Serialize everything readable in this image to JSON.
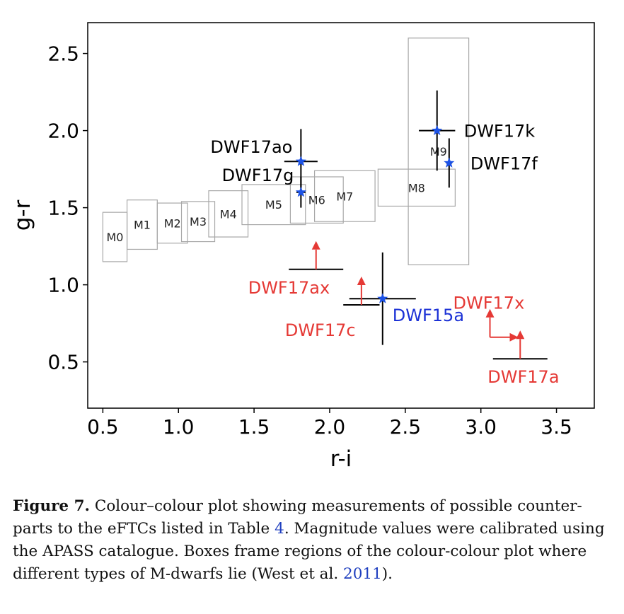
{
  "chart_data": {
    "type": "scatter",
    "xlabel": "r-i",
    "ylabel": "g-r",
    "xlim": [
      0.4,
      3.75
    ],
    "ylim": [
      0.2,
      2.7
    ],
    "xticks": [
      0.5,
      1.0,
      1.5,
      2.0,
      2.5,
      3.0,
      3.5
    ],
    "xtick_labels": [
      "0.5",
      "1.0",
      "1.5",
      "2.0",
      "2.5",
      "3.0",
      "3.5"
    ],
    "yticks": [
      0.5,
      1.0,
      1.5,
      2.0,
      2.5
    ],
    "ytick_labels": [
      "0.5",
      "1.0",
      "1.5",
      "2.0",
      "2.5"
    ],
    "grid": false,
    "m_dwarf_boxes": [
      {
        "label": "M0",
        "x0": 0.5,
        "x1": 0.66,
        "y0": 1.15,
        "y1": 1.47
      },
      {
        "label": "M1",
        "x0": 0.66,
        "x1": 0.86,
        "y0": 1.23,
        "y1": 1.55
      },
      {
        "label": "M2",
        "x0": 0.86,
        "x1": 1.06,
        "y0": 1.27,
        "y1": 1.53
      },
      {
        "label": "M3",
        "x0": 1.02,
        "x1": 1.24,
        "y0": 1.28,
        "y1": 1.54
      },
      {
        "label": "M4",
        "x0": 1.2,
        "x1": 1.46,
        "y0": 1.31,
        "y1": 1.61
      },
      {
        "label": "M5",
        "x0": 1.42,
        "x1": 1.84,
        "y0": 1.39,
        "y1": 1.65
      },
      {
        "label": "M6",
        "x0": 1.74,
        "x1": 2.09,
        "y0": 1.4,
        "y1": 1.7
      },
      {
        "label": "M7",
        "x0": 1.9,
        "x1": 2.3,
        "y0": 1.41,
        "y1": 1.74
      },
      {
        "label": "M8",
        "x0": 2.32,
        "x1": 2.83,
        "y0": 1.51,
        "y1": 1.75
      },
      {
        "label": "M9",
        "x0": 2.52,
        "x1": 2.92,
        "y0": 1.13,
        "y1": 2.6
      }
    ],
    "detections": [
      {
        "label": "DWF17ao",
        "x": 1.81,
        "y": 1.8,
        "xerr": 0.11,
        "yerr": 0.21,
        "color": "#000000"
      },
      {
        "label": "DWF17g",
        "x": 1.81,
        "y": 1.6,
        "xerr": 0.03,
        "yerr": 0.1,
        "color": "#000000"
      },
      {
        "label": "DWF17k",
        "x": 2.71,
        "y": 2.0,
        "xerr": 0.12,
        "yerr": 0.26,
        "color": "#000000"
      },
      {
        "label": "DWF17f",
        "x": 2.79,
        "y": 1.79,
        "xerr": 0.02,
        "yerr": 0.16,
        "color": "#000000"
      },
      {
        "label": "DWF15a",
        "x": 2.35,
        "y": 0.91,
        "xerr": 0.22,
        "yerr": 0.3,
        "color": "#1c32d6"
      }
    ],
    "limits": [
      {
        "label": "DWF17ax",
        "x": 1.91,
        "y": 1.1,
        "xerr": 0.18,
        "direction": "up",
        "color": "#e53935"
      },
      {
        "label": "DWF17c",
        "x": 2.21,
        "y": 0.87,
        "xerr": 0.12,
        "direction": "up",
        "color": "#e53935"
      },
      {
        "label": "DWF17a",
        "x": 3.26,
        "y": 0.52,
        "xerr": 0.18,
        "direction": "up",
        "color": "#e53935"
      },
      {
        "label": "DWF17x",
        "x": 3.06,
        "y": 0.66,
        "direction": "up-right",
        "color": "#e53935"
      }
    ],
    "colors": {
      "star_marker": "#1c52e6",
      "upper_limit": "#e53935",
      "dwf15a_label": "#1c32d6",
      "box_edge": "#a8a8a8"
    }
  },
  "caption": {
    "label": "Figure 7.",
    "part1": "Colour–colour plot showing measurements of possible counter-parts to the eFTCs listed in Table",
    "table_ref": "4",
    "part2": ". Magnitude values were calibrated using the APASS catalogue. Boxes frame regions of the colour-colour plot where different types of M-dwarfs lie (West et al.",
    "citation_year": "2011",
    "part3": ")."
  }
}
